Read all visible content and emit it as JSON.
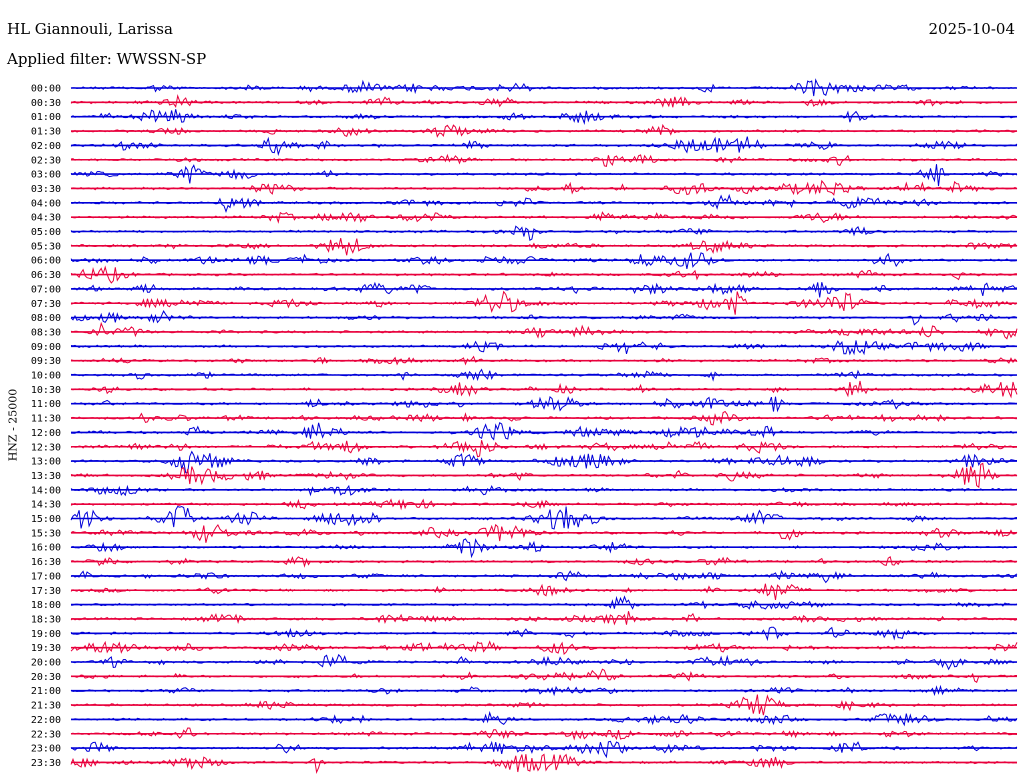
{
  "header": {
    "station": "HL Giannouli, Larissa",
    "date": "2025-10-04",
    "filter": "Applied filter: WWSSN-SP"
  },
  "chart_data": {
    "type": "line",
    "ylabel": "HNZ - 25000",
    "colors": [
      "#0000d8",
      "#e8003c"
    ],
    "rows": [
      "00:00",
      "00:30",
      "01:00",
      "01:30",
      "02:00",
      "02:30",
      "03:00",
      "03:30",
      "04:00",
      "04:30",
      "05:00",
      "05:30",
      "06:00",
      "06:30",
      "07:00",
      "07:30",
      "08:00",
      "08:30",
      "09:00",
      "09:30",
      "10:00",
      "10:30",
      "11:00",
      "11:30",
      "12:00",
      "12:30",
      "13:00",
      "13:30",
      "14:00",
      "14:30",
      "15:00",
      "15:30",
      "16:00",
      "16:30",
      "17:00",
      "17:30",
      "18:00",
      "18:30",
      "19:00",
      "19:30",
      "20:00",
      "20:30",
      "21:00",
      "21:30",
      "22:00",
      "22:30",
      "23:00",
      "23:30"
    ]
  }
}
